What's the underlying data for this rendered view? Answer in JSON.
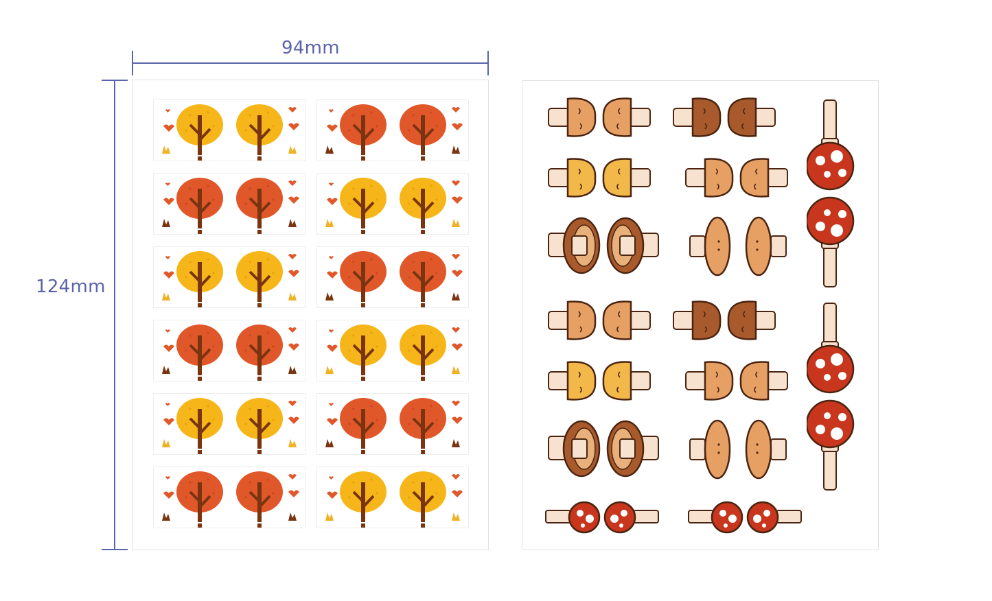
{
  "dimensions": {
    "width": "94mm",
    "height": "124mm"
  },
  "colors": {
    "dimension_line": "#5a64a8",
    "tree_yellow": "#f6b619",
    "tree_orange": "#e0572a",
    "trunk": "#7a3410",
    "mushroom_light": "#e6a063",
    "mushroom_dark": "#a85a2c",
    "mushroom_yellow": "#f3b84a",
    "mushroom_red": "#c8361e",
    "stem": "#f6e2cf",
    "outline": "#4a2410"
  },
  "tree_sheet": {
    "rows": [
      [
        "yellow",
        "orange"
      ],
      [
        "orange",
        "yellow"
      ],
      [
        "yellow",
        "orange"
      ],
      [
        "orange",
        "yellow"
      ],
      [
        "yellow",
        "orange"
      ],
      [
        "orange",
        "yellow"
      ]
    ]
  },
  "mushroom_sheet": {
    "stickers": [
      "brown-mushroom-pair",
      "dark-mushroom-pair",
      "yellow-mushroom-pair",
      "small-mushroom-pair",
      "cap-side-view-pair",
      "oval-mushroom-pair",
      "red-spotted-mushroom-pair"
    ]
  }
}
